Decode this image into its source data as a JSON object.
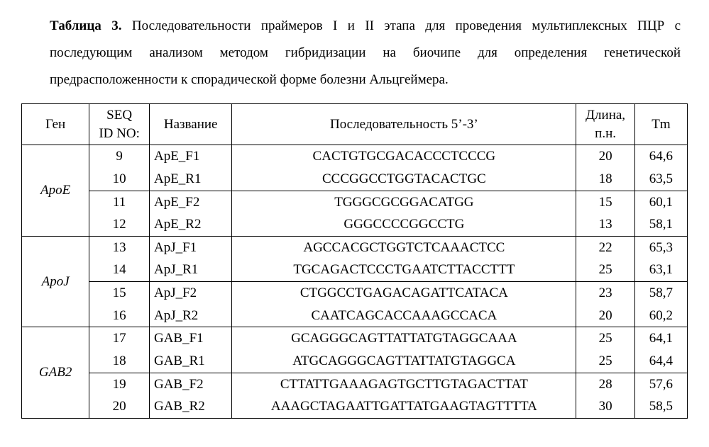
{
  "caption": {
    "label": "Таблица 3.",
    "text": " Последовательности праймеров I и II этапа для проведения мультиплексных ПЦР с последующим анализом методом гибридизации на биочипе для определения генетической предрасположенности к спорадической форме болезни Альцгеймера."
  },
  "table": {
    "headers": {
      "gene": "Ген",
      "seqid_l1": "SEQ",
      "seqid_l2": "ID NO:",
      "name": "Название",
      "sequence": "Последовательность 5’-3’",
      "length_l1": "Длина,",
      "length_l2": "п.н.",
      "tm": "Tm"
    },
    "groups": [
      {
        "gene": "ApoE",
        "rows": [
          {
            "seqid": "9",
            "name": "ApE_F1",
            "sequence": "CACTGTGCGACACCCTCCCG",
            "length": "20",
            "tm": "64,6"
          },
          {
            "seqid": "10",
            "name": "ApE_R1",
            "sequence": "CCCGGCCTGGTACACTGC",
            "length": "18",
            "tm": "63,5"
          },
          {
            "seqid": "11",
            "name": "ApE_F2",
            "sequence": "TGGGCGCGGACATGG",
            "length": "15",
            "tm": "60,1"
          },
          {
            "seqid": "12",
            "name": "ApE_R2",
            "sequence": "GGGCCCCGGCCTG",
            "length": "13",
            "tm": "58,1"
          }
        ]
      },
      {
        "gene": "ApoJ",
        "rows": [
          {
            "seqid": "13",
            "name": "ApJ_F1",
            "sequence": "AGCCACGCTGGTCTCAAACTCC",
            "length": "22",
            "tm": "65,3"
          },
          {
            "seqid": "14",
            "name": "ApJ_R1",
            "sequence": "TGCAGACTCCCTGAATCTTACCTTT",
            "length": "25",
            "tm": "63,1"
          },
          {
            "seqid": "15",
            "name": "ApJ_F2",
            "sequence": "CTGGCCTGAGACAGATTCATACA",
            "length": "23",
            "tm": "58,7"
          },
          {
            "seqid": "16",
            "name": "ApJ_R2",
            "sequence": "CAATCAGCACCAAAGCCACA",
            "length": "20",
            "tm": "60,2"
          }
        ]
      },
      {
        "gene": "GAB2",
        "rows": [
          {
            "seqid": "17",
            "name": "GAB_F1",
            "sequence": "GCAGGGCAGTTATTATGTAGGCAAA",
            "length": "25",
            "tm": "64,1"
          },
          {
            "seqid": "18",
            "name": "GAB_R1",
            "sequence": "ATGCAGGGCAGTTATTATGTAGGCA",
            "length": "25",
            "tm": "64,4"
          },
          {
            "seqid": "19",
            "name": "GAB_F2",
            "sequence": "CTTATTGAAAGAGTGCTTGTAGACTTAT",
            "length": "28",
            "tm": "57,6"
          },
          {
            "seqid": "20",
            "name": "GAB_R2",
            "sequence": "AAAGCTAGAATTGATTATGAAGTAGTTTTA",
            "length": "30",
            "tm": "58,5"
          }
        ]
      }
    ]
  }
}
